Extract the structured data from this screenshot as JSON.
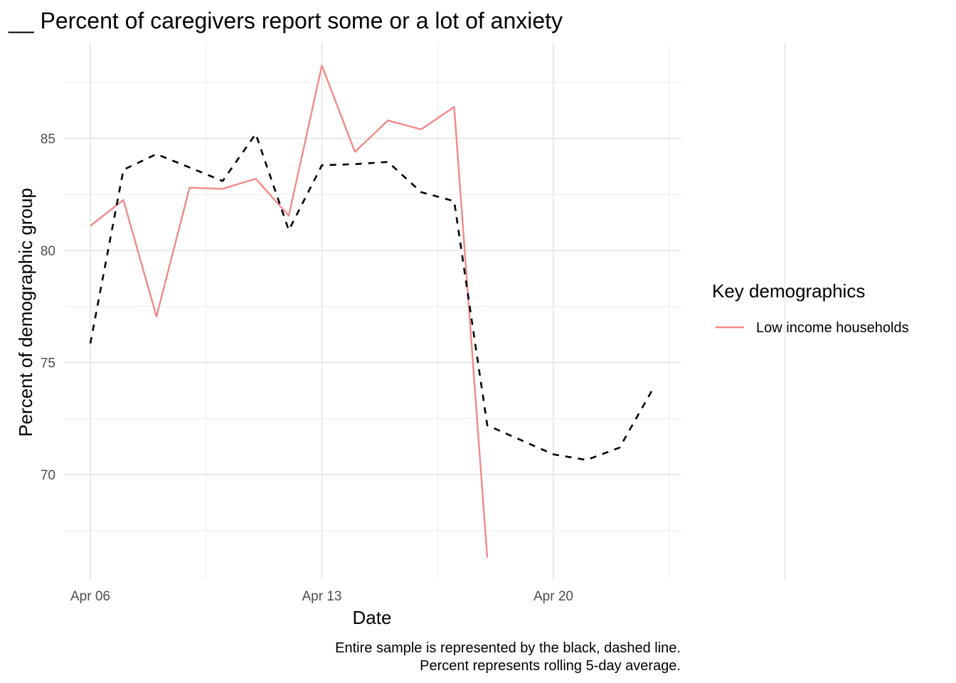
{
  "chart_data": {
    "type": "line",
    "title": "__ Percent of caregivers report some or a lot of anxiety",
    "xlabel": "Date",
    "ylabel": "Percent of demographic group",
    "x_ticks": [
      "Apr 06",
      "Apr 13",
      "Apr 20"
    ],
    "y_ticks": [
      70,
      75,
      80,
      85
    ],
    "ylim": [
      65.5,
      89.5
    ],
    "grid": true,
    "legend": {
      "title": "Key demographics",
      "position": "right",
      "entries": [
        "Low income households"
      ]
    },
    "series": [
      {
        "name": "Low income households",
        "color": "#f08a88",
        "style": "solid",
        "points": [
          {
            "x": "2020-04-06",
            "y": 81.1
          },
          {
            "x": "2020-04-07",
            "y": 82.25
          },
          {
            "x": "2020-04-08",
            "y": 77.05
          },
          {
            "x": "2020-04-09",
            "y": 82.8
          },
          {
            "x": "2020-04-10",
            "y": 82.75
          },
          {
            "x": "2020-04-11",
            "y": 83.2
          },
          {
            "x": "2020-04-12",
            "y": 81.55
          },
          {
            "x": "2020-04-13",
            "y": 88.25
          },
          {
            "x": "2020-04-14",
            "y": 84.4
          },
          {
            "x": "2020-04-15",
            "y": 85.8
          },
          {
            "x": "2020-04-16",
            "y": 85.4
          },
          {
            "x": "2020-04-17",
            "y": 86.4
          },
          {
            "x": "2020-04-18",
            "y": 66.3
          }
        ]
      },
      {
        "color": "#000000",
        "style": "dashed",
        "points": [
          {
            "x": "2020-04-06",
            "y": 75.85
          },
          {
            "x": "2020-04-07",
            "y": 83.6
          },
          {
            "x": "2020-04-08",
            "y": 84.3
          },
          {
            "x": "2020-04-09",
            "y": 83.7
          },
          {
            "x": "2020-04-10",
            "y": 83.1
          },
          {
            "x": "2020-04-11",
            "y": 85.2
          },
          {
            "x": "2020-04-12",
            "y": 80.9
          },
          {
            "x": "2020-04-13",
            "y": 83.8
          },
          {
            "x": "2020-04-14",
            "y": 83.85
          },
          {
            "x": "2020-04-15",
            "y": 83.95
          },
          {
            "x": "2020-04-16",
            "y": 82.6
          },
          {
            "x": "2020-04-17",
            "y": 82.2
          },
          {
            "x": "2020-04-18",
            "y": 72.2
          },
          {
            "x": "2020-04-19",
            "y": 71.55
          },
          {
            "x": "2020-04-20",
            "y": 70.9
          },
          {
            "x": "2020-04-21",
            "y": 70.65
          },
          {
            "x": "2020-04-22",
            "y": 71.2
          },
          {
            "x": "2020-04-23",
            "y": 73.8
          }
        ]
      }
    ],
    "caption": [
      "Entire sample is represented by the black, dashed line.",
      "Percent represents rolling 5-day average."
    ]
  }
}
